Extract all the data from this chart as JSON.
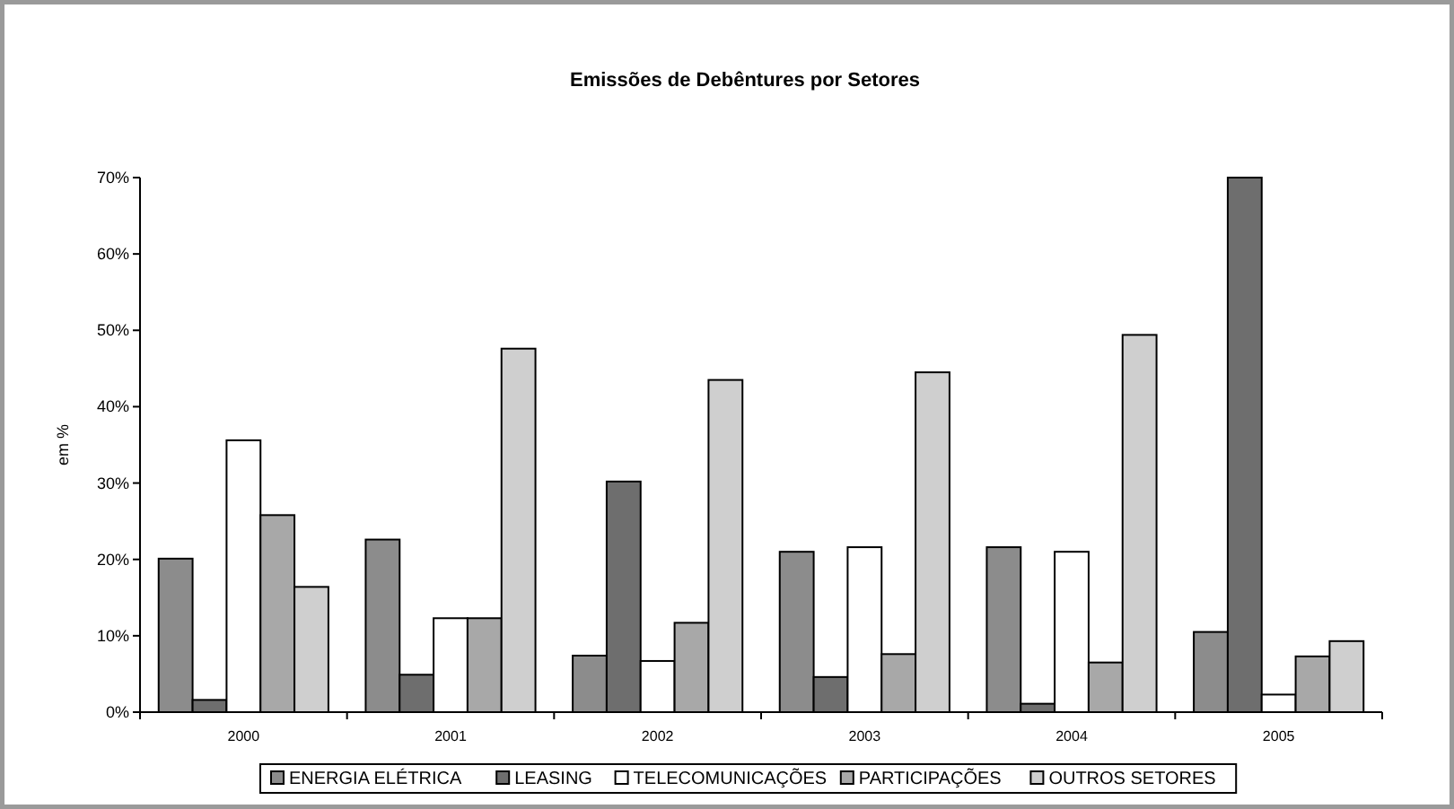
{
  "chart_data": {
    "type": "bar",
    "title": "Emissões de Debêntures por Setores",
    "ylabel": "em %",
    "categories": [
      "2000",
      "2001",
      "2002",
      "2003",
      "2004",
      "2005"
    ],
    "series": [
      {
        "name": "ENERGIA ELÉTRICA",
        "color": "#8c8c8c",
        "values": [
          20.1,
          22.6,
          7.4,
          21.0,
          21.6,
          10.5
        ]
      },
      {
        "name": "LEASING",
        "color": "#6e6e6e",
        "values": [
          1.6,
          4.9,
          30.2,
          4.6,
          1.1,
          70.0
        ]
      },
      {
        "name": "TELECOMUNICAÇÕES",
        "color": "#ffffff",
        "values": [
          35.6,
          12.3,
          6.7,
          21.6,
          21.0,
          2.3
        ]
      },
      {
        "name": "PARTICIPAÇÕES",
        "color": "#a8a8a8",
        "values": [
          25.8,
          12.3,
          11.7,
          7.6,
          6.5,
          7.3
        ]
      },
      {
        "name": "OUTROS SETORES",
        "color": "#cfcfcf",
        "values": [
          16.4,
          47.6,
          43.5,
          44.5,
          49.4,
          9.3
        ]
      }
    ],
    "ylim": [
      0,
      70
    ],
    "yticks": [
      {
        "value": 0,
        "label": "0%"
      },
      {
        "value": 10,
        "label": "10%"
      },
      {
        "value": 20,
        "label": "20%"
      },
      {
        "value": 30,
        "label": "30%"
      },
      {
        "value": 40,
        "label": "40%"
      },
      {
        "value": 50,
        "label": "50%"
      },
      {
        "value": 60,
        "label": "60%"
      },
      {
        "value": 70,
        "label": "70%"
      }
    ],
    "grid": false,
    "legend": "bottom"
  }
}
